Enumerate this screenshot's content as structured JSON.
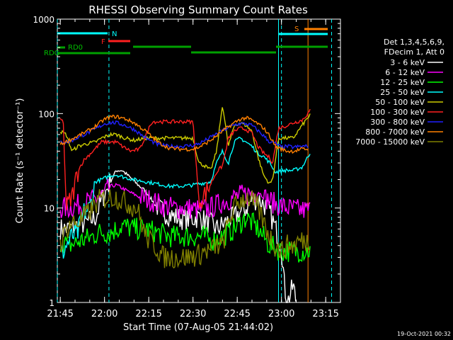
{
  "chart_data": {
    "type": "line",
    "title": "RHESSI Observing Summary Count Rates",
    "xlabel": "Start Time (07-Aug-05 21:44:02)",
    "ylabel": "Count Rate (s⁻¹ detector⁻¹)",
    "y_scale": "log",
    "ylim": [
      1,
      1000
    ],
    "xlim_minutes": [
      0,
      96
    ],
    "x_ticks": [
      "21:45",
      "22:00",
      "22:15",
      "22:30",
      "22:45",
      "23:00",
      "23:15"
    ],
    "y_ticks": [
      "1",
      "10",
      "100",
      "1000"
    ],
    "legend_header": [
      "Det 1,3,4,5,6,9,",
      "FDecim 1, Att 0"
    ],
    "timestamp": "19-Oct-2021 00:32",
    "series": [
      {
        "name": "3 - 6 keV",
        "color": "#ffffff",
        "points": [
          [
            1,
            6
          ],
          [
            4,
            6
          ],
          [
            7,
            6.5
          ],
          [
            10,
            7
          ],
          [
            13,
            8
          ],
          [
            15,
            12
          ],
          [
            18,
            19
          ],
          [
            20,
            25
          ],
          [
            22,
            25
          ],
          [
            24,
            22
          ],
          [
            27,
            18
          ],
          [
            30,
            15
          ],
          [
            33,
            11
          ],
          [
            36,
            9
          ],
          [
            40,
            8
          ],
          [
            44,
            7.5
          ],
          [
            48,
            8
          ],
          [
            52,
            6.8
          ],
          [
            54,
            6
          ],
          [
            57,
            7
          ],
          [
            60,
            8
          ],
          [
            64,
            10
          ],
          [
            66,
            12
          ],
          [
            68,
            12.5
          ],
          [
            70,
            11
          ],
          [
            72,
            9
          ],
          [
            74,
            6
          ],
          [
            76,
            4
          ],
          [
            77,
            1.5
          ],
          [
            78,
            1
          ],
          [
            80,
            1.5
          ],
          [
            81,
            1
          ]
        ]
      },
      {
        "name": "6 - 12 keV",
        "color": "#ff00ff",
        "points": [
          [
            1,
            10
          ],
          [
            4,
            10
          ],
          [
            8,
            11
          ],
          [
            12,
            12
          ],
          [
            14,
            13
          ],
          [
            16,
            14
          ],
          [
            18,
            17
          ],
          [
            20,
            17.5
          ],
          [
            24,
            15
          ],
          [
            28,
            13
          ],
          [
            32,
            12
          ],
          [
            36,
            10.5
          ],
          [
            40,
            10
          ],
          [
            44,
            10
          ],
          [
            48,
            9.5
          ],
          [
            52,
            10
          ],
          [
            56,
            11.5
          ],
          [
            60,
            13
          ],
          [
            64,
            14
          ],
          [
            68,
            15
          ],
          [
            70,
            13
          ],
          [
            74,
            11
          ],
          [
            78,
            10
          ],
          [
            82,
            9.5
          ],
          [
            86,
            9.5
          ]
        ]
      },
      {
        "name": "12 - 25 keV",
        "color": "#00ff00",
        "points": [
          [
            1,
            4.5
          ],
          [
            4,
            4
          ],
          [
            8,
            4.5
          ],
          [
            12,
            5
          ],
          [
            14,
            5.5
          ],
          [
            18,
            5.5
          ],
          [
            22,
            6.5
          ],
          [
            26,
            6
          ],
          [
            30,
            6
          ],
          [
            34,
            5.5
          ],
          [
            38,
            5
          ],
          [
            42,
            5
          ],
          [
            46,
            5
          ],
          [
            50,
            5
          ],
          [
            52,
            4.5
          ],
          [
            56,
            5
          ],
          [
            60,
            6
          ],
          [
            64,
            8
          ],
          [
            68,
            6
          ],
          [
            72,
            4
          ],
          [
            76,
            3.5
          ],
          [
            80,
            3.5
          ],
          [
            84,
            3.5
          ],
          [
            86,
            3.5
          ]
        ]
      },
      {
        "name": "25 - 50 keV",
        "color": "#00ffff",
        "points": [
          [
            1,
            3
          ],
          [
            3,
            4
          ],
          [
            5,
            5
          ],
          [
            7,
            5.5
          ],
          [
            9,
            9
          ],
          [
            11,
            10
          ],
          [
            13,
            19
          ],
          [
            15,
            20
          ],
          [
            18,
            22
          ],
          [
            20,
            22.5
          ],
          [
            23,
            21
          ],
          [
            26,
            20
          ],
          [
            30,
            19
          ],
          [
            34,
            18
          ],
          [
            38,
            17
          ],
          [
            42,
            17
          ],
          [
            46,
            17.5
          ],
          [
            48,
            18
          ],
          [
            50,
            18.5
          ],
          [
            52,
            19
          ],
          [
            54,
            30
          ],
          [
            56,
            40
          ],
          [
            58,
            30
          ],
          [
            60,
            50
          ],
          [
            62,
            55
          ],
          [
            64,
            50
          ],
          [
            66,
            45
          ],
          [
            68,
            38
          ],
          [
            70,
            35
          ],
          [
            72,
            30
          ],
          [
            74,
            24
          ],
          [
            77,
            25
          ],
          [
            80,
            25
          ],
          [
            83,
            27
          ],
          [
            86,
            40
          ]
        ]
      },
      {
        "name": "50 - 100 keV",
        "color": "#cccc00",
        "points": [
          [
            1,
            65
          ],
          [
            3,
            60
          ],
          [
            5,
            40
          ],
          [
            7,
            45
          ],
          [
            10,
            48
          ],
          [
            13,
            50
          ],
          [
            15,
            55
          ],
          [
            18,
            60
          ],
          [
            20,
            60
          ],
          [
            23,
            55
          ],
          [
            26,
            52
          ],
          [
            30,
            55
          ],
          [
            34,
            55
          ],
          [
            38,
            55
          ],
          [
            42,
            55
          ],
          [
            46,
            55
          ],
          [
            48,
            30
          ],
          [
            50,
            28
          ],
          [
            52,
            25
          ],
          [
            54,
            40
          ],
          [
            56,
            125
          ],
          [
            58,
            45
          ],
          [
            60,
            75
          ],
          [
            62,
            80
          ],
          [
            64,
            75
          ],
          [
            66,
            65
          ],
          [
            68,
            35
          ],
          [
            70,
            22
          ],
          [
            72,
            18
          ],
          [
            73,
            20
          ],
          [
            75,
            55
          ],
          [
            78,
            55
          ],
          [
            80,
            55
          ],
          [
            83,
            75
          ],
          [
            86,
            100
          ]
        ]
      },
      {
        "name": "100 - 300 keV",
        "color": "#ff2020",
        "points": [
          [
            1,
            85
          ],
          [
            2,
            85
          ],
          [
            3,
            10
          ],
          [
            5,
            13
          ],
          [
            7,
            25
          ],
          [
            9,
            32
          ],
          [
            12,
            40
          ],
          [
            15,
            50
          ],
          [
            18,
            50
          ],
          [
            20,
            50
          ],
          [
            22,
            45
          ],
          [
            25,
            40
          ],
          [
            28,
            42
          ],
          [
            32,
            82
          ],
          [
            36,
            82
          ],
          [
            40,
            82
          ],
          [
            44,
            82
          ],
          [
            46,
            82
          ],
          [
            48,
            12
          ],
          [
            50,
            14
          ],
          [
            52,
            18
          ],
          [
            54,
            24
          ],
          [
            56,
            28
          ],
          [
            58,
            55
          ],
          [
            60,
            65
          ],
          [
            62,
            70
          ],
          [
            64,
            68
          ],
          [
            66,
            62
          ],
          [
            68,
            45
          ],
          [
            70,
            38
          ],
          [
            72,
            34
          ],
          [
            73,
            30
          ],
          [
            75,
            70
          ],
          [
            78,
            75
          ],
          [
            80,
            80
          ],
          [
            83,
            85
          ],
          [
            86,
            110
          ]
        ]
      },
      {
        "name": "300 - 800 keV",
        "color": "#2020ff",
        "points": [
          [
            1,
            50
          ],
          [
            4,
            50
          ],
          [
            8,
            58
          ],
          [
            12,
            66
          ],
          [
            16,
            78
          ],
          [
            18,
            80
          ],
          [
            20,
            80
          ],
          [
            23,
            75
          ],
          [
            26,
            68
          ],
          [
            30,
            55
          ],
          [
            34,
            47
          ],
          [
            38,
            45
          ],
          [
            42,
            45
          ],
          [
            46,
            46
          ],
          [
            48,
            48
          ],
          [
            52,
            56
          ],
          [
            56,
            66
          ],
          [
            60,
            76
          ],
          [
            62,
            78
          ],
          [
            64,
            78
          ],
          [
            66,
            75
          ],
          [
            68,
            66
          ],
          [
            70,
            58
          ],
          [
            72,
            50
          ],
          [
            74,
            48
          ],
          [
            76,
            44
          ],
          [
            78,
            45
          ],
          [
            80,
            44
          ],
          [
            83,
            45
          ],
          [
            85,
            45
          ]
        ]
      },
      {
        "name": "800 - 7000 keV",
        "color": "#ff8000",
        "points": [
          [
            1,
            47
          ],
          [
            4,
            52
          ],
          [
            8,
            60
          ],
          [
            12,
            70
          ],
          [
            16,
            87
          ],
          [
            18,
            92
          ],
          [
            20,
            93
          ],
          [
            23,
            88
          ],
          [
            26,
            80
          ],
          [
            30,
            65
          ],
          [
            34,
            50
          ],
          [
            38,
            43
          ],
          [
            42,
            42
          ],
          [
            46,
            42
          ],
          [
            48,
            44
          ],
          [
            52,
            52
          ],
          [
            56,
            65
          ],
          [
            60,
            80
          ],
          [
            62,
            87
          ],
          [
            64,
            90
          ],
          [
            66,
            85
          ],
          [
            68,
            78
          ],
          [
            70,
            70
          ],
          [
            72,
            58
          ],
          [
            74,
            45
          ],
          [
            76,
            42
          ],
          [
            78,
            40
          ],
          [
            80,
            40
          ],
          [
            83,
            42
          ],
          [
            85,
            42
          ]
        ]
      },
      {
        "name": "7000 - 15000 keV",
        "color": "#808000",
        "points": [
          [
            1,
            4
          ],
          [
            3,
            6
          ],
          [
            5,
            7
          ],
          [
            7,
            7
          ],
          [
            9,
            8
          ],
          [
            12,
            10
          ],
          [
            14,
            12
          ],
          [
            17,
            13
          ],
          [
            20,
            13
          ],
          [
            22,
            12
          ],
          [
            24,
            11
          ],
          [
            27,
            10
          ],
          [
            30,
            5
          ],
          [
            33,
            4
          ],
          [
            36,
            3
          ],
          [
            40,
            3
          ],
          [
            44,
            3
          ],
          [
            48,
            3.2
          ],
          [
            50,
            3.5
          ],
          [
            52,
            3.5
          ],
          [
            54,
            4
          ],
          [
            56,
            4
          ],
          [
            58,
            7
          ],
          [
            60,
            10
          ],
          [
            62,
            12
          ],
          [
            64,
            13
          ],
          [
            66,
            12
          ],
          [
            68,
            10
          ],
          [
            70,
            7
          ],
          [
            72,
            5
          ],
          [
            74,
            4
          ],
          [
            76,
            3.5
          ],
          [
            78,
            4
          ],
          [
            80,
            4
          ],
          [
            82,
            4.5
          ],
          [
            86,
            4.5
          ]
        ]
      }
    ],
    "annotations": {
      "flag_labels": [
        "N",
        "F",
        "RD0",
        "RDG",
        "S"
      ],
      "dashed_vlines_minutes": [
        0,
        17.5,
        76,
        93
      ],
      "solid_vlines": [
        {
          "minute": 75,
          "color": "#00ffff"
        },
        {
          "minute": 85,
          "color": "#ff8000"
        }
      ]
    }
  }
}
